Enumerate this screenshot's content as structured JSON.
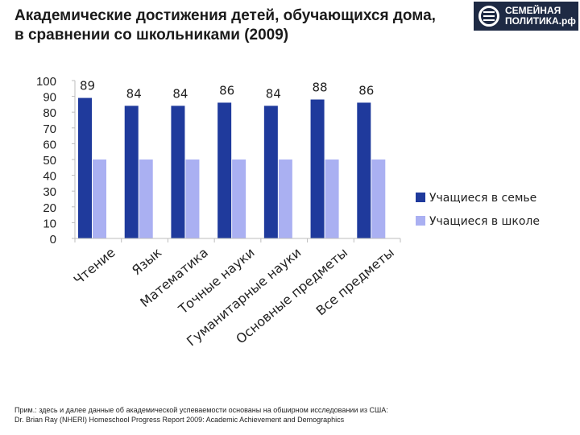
{
  "header": {
    "title_line1": "Академические достижения детей, обучающихся дома,",
    "title_line2": "в сравнении со школьниками (2009)"
  },
  "logo": {
    "icon": "globe-icon",
    "line1": "СЕМЕЙНАЯ",
    "line2": "ПОЛИТИКА.рф"
  },
  "chart_data": {
    "type": "bar",
    "categories": [
      "Чтение",
      "Язык",
      "Математика",
      "Точные науки",
      "Гуманитарные науки",
      "Основные предметы",
      "Все предметы"
    ],
    "series": [
      {
        "name": "Учащиеся в семье",
        "values": [
          89,
          84,
          84,
          86,
          84,
          88,
          86
        ],
        "color": "#1f3a9c"
      },
      {
        "name": "Учащиеся в школе",
        "values": [
          50,
          50,
          50,
          50,
          50,
          50,
          50
        ],
        "color": "#aab0f2"
      }
    ],
    "ylim": [
      0,
      100
    ],
    "yticks": [
      "0",
      "10",
      "20",
      "30",
      "40",
      "50",
      "60",
      "70",
      "80",
      "90",
      "100"
    ],
    "data_labels": [
      "89",
      "84",
      "84",
      "86",
      "84",
      "88",
      "86"
    ],
    "grid": false,
    "legend_position": "right"
  },
  "footnote": {
    "line1": "Прим.: здесь и далее данные об академической успеваемости основаны на обширном исследовании из США:",
    "line2": "Dr. Brian Ray (NHERI) Homeschool Progress Report 2009: Academic Achievement and Demographics"
  }
}
